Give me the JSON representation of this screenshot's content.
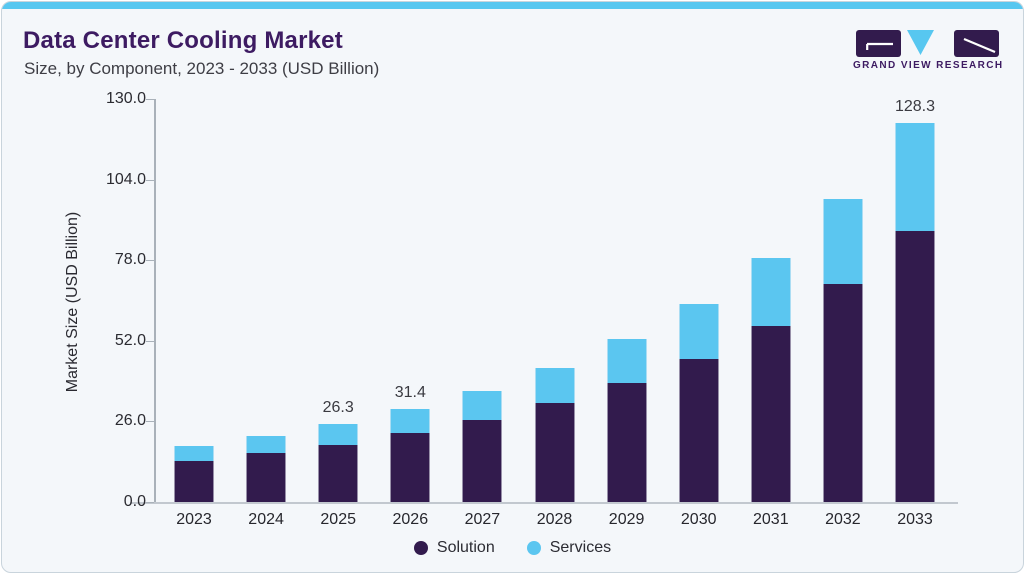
{
  "header": {
    "title": "Data Center Cooling Market",
    "subtitle": "Size, by Component, 2023 - 2033 (USD Billion)",
    "brand": "GRAND VIEW RESEARCH"
  },
  "colors": {
    "solution": "#321b4d",
    "services": "#5bc6f0",
    "accent_bar": "#57c7f0",
    "title_text": "#3d1b62",
    "card_background": "#f4f7fa"
  },
  "chart_data": {
    "type": "bar",
    "stacked": true,
    "title": "Data Center Cooling Market Size, by Component, 2023 - 2033 (USD Billion)",
    "categories": [
      "2023",
      "2024",
      "2025",
      "2026",
      "2027",
      "2028",
      "2029",
      "2030",
      "2031",
      "2032",
      "2033"
    ],
    "series": [
      {
        "name": "Solution",
        "color": "#321b4d",
        "values": [
          13.9,
          16.6,
          19.3,
          23.4,
          27.8,
          33.5,
          40.3,
          48.4,
          59.6,
          73.8,
          91.7
        ]
      },
      {
        "name": "Services",
        "color": "#5bc6f0",
        "values": [
          5.1,
          5.8,
          7.0,
          8.0,
          9.8,
          11.8,
          14.9,
          18.6,
          23.0,
          28.8,
          36.6
        ]
      }
    ],
    "totals": [
      19.0,
      22.4,
      26.3,
      31.4,
      37.6,
      45.3,
      55.2,
      67.0,
      82.6,
      102.6,
      128.3
    ],
    "bar_labels": [
      "",
      "",
      "26.3",
      "31.4",
      "",
      "",
      "",
      "",
      "",
      "",
      "128.3"
    ],
    "ylabel": "Market Size (USD Billion)",
    "xlabel": "",
    "yticks": [
      0.0,
      26.0,
      52.0,
      78.0,
      104.0,
      130.0
    ],
    "ytick_labels": [
      "0.0",
      "26.0",
      "52.0",
      "78.0",
      "104.0",
      "130.0"
    ],
    "ylim": [
      0,
      130
    ],
    "grid": false,
    "legend": [
      "Solution",
      "Services"
    ],
    "legend_position": "bottom"
  }
}
